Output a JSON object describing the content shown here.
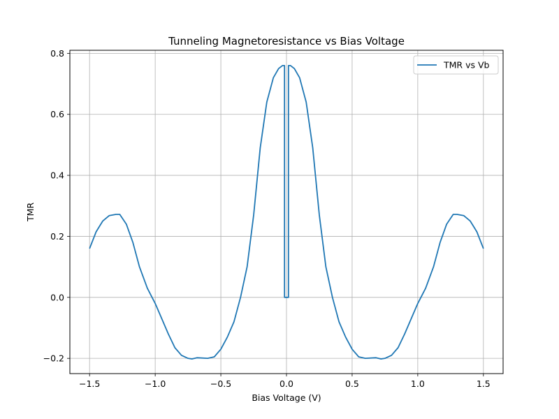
{
  "chart_data": {
    "type": "line",
    "title": "Tunneling Magnetoresistance vs Bias Voltage",
    "xlabel": "Bias Voltage (V)",
    "ylabel": "TMR",
    "xlim": [
      -1.65,
      1.65
    ],
    "ylim": [
      -0.25,
      0.81
    ],
    "xticks": [
      -1.5,
      -1.0,
      -0.5,
      0.0,
      0.5,
      1.0,
      1.5
    ],
    "xtick_labels": [
      "−1.5",
      "−1.0",
      "−0.5",
      "0.0",
      "0.5",
      "1.0",
      "1.5"
    ],
    "yticks": [
      -0.2,
      0.0,
      0.2,
      0.4,
      0.6,
      0.8
    ],
    "ytick_labels": [
      "−0.2",
      "0.0",
      "0.2",
      "0.4",
      "0.6",
      "0.8"
    ],
    "grid": true,
    "legend": "top-right",
    "series": [
      {
        "name": "TMR vs Vb",
        "color": "#1f77b4",
        "x": [
          -1.5,
          -1.45,
          -1.4,
          -1.35,
          -1.3,
          -1.27,
          -1.22,
          -1.17,
          -1.12,
          -1.06,
          -1.0,
          -0.95,
          -0.9,
          -0.85,
          -0.8,
          -0.75,
          -0.72,
          -0.68,
          -0.6,
          -0.55,
          -0.5,
          -0.45,
          -0.4,
          -0.35,
          -0.3,
          -0.25,
          -0.2,
          -0.15,
          -0.1,
          -0.06,
          -0.03,
          -0.015,
          -0.015,
          0.0,
          0.015,
          0.015,
          0.03,
          0.06,
          0.1,
          0.15,
          0.2,
          0.25,
          0.3,
          0.35,
          0.4,
          0.45,
          0.5,
          0.55,
          0.6,
          0.68,
          0.72,
          0.75,
          0.8,
          0.85,
          0.9,
          0.95,
          1.0,
          1.06,
          1.12,
          1.17,
          1.22,
          1.27,
          1.3,
          1.35,
          1.4,
          1.45,
          1.5
        ],
        "y": [
          0.16,
          0.215,
          0.25,
          0.268,
          0.272,
          0.272,
          0.24,
          0.18,
          0.1,
          0.03,
          -0.02,
          -0.07,
          -0.12,
          -0.165,
          -0.19,
          -0.2,
          -0.202,
          -0.198,
          -0.2,
          -0.195,
          -0.17,
          -0.13,
          -0.08,
          0.0,
          0.1,
          0.27,
          0.49,
          0.64,
          0.72,
          0.75,
          0.76,
          0.76,
          0.0,
          0.0,
          0.0,
          0.76,
          0.76,
          0.75,
          0.72,
          0.64,
          0.49,
          0.27,
          0.1,
          0.0,
          -0.08,
          -0.13,
          -0.17,
          -0.195,
          -0.2,
          -0.198,
          -0.202,
          -0.2,
          -0.19,
          -0.165,
          -0.12,
          -0.07,
          -0.02,
          0.03,
          0.1,
          0.18,
          0.24,
          0.272,
          0.272,
          0.268,
          0.25,
          0.215,
          0.16
        ]
      }
    ]
  }
}
